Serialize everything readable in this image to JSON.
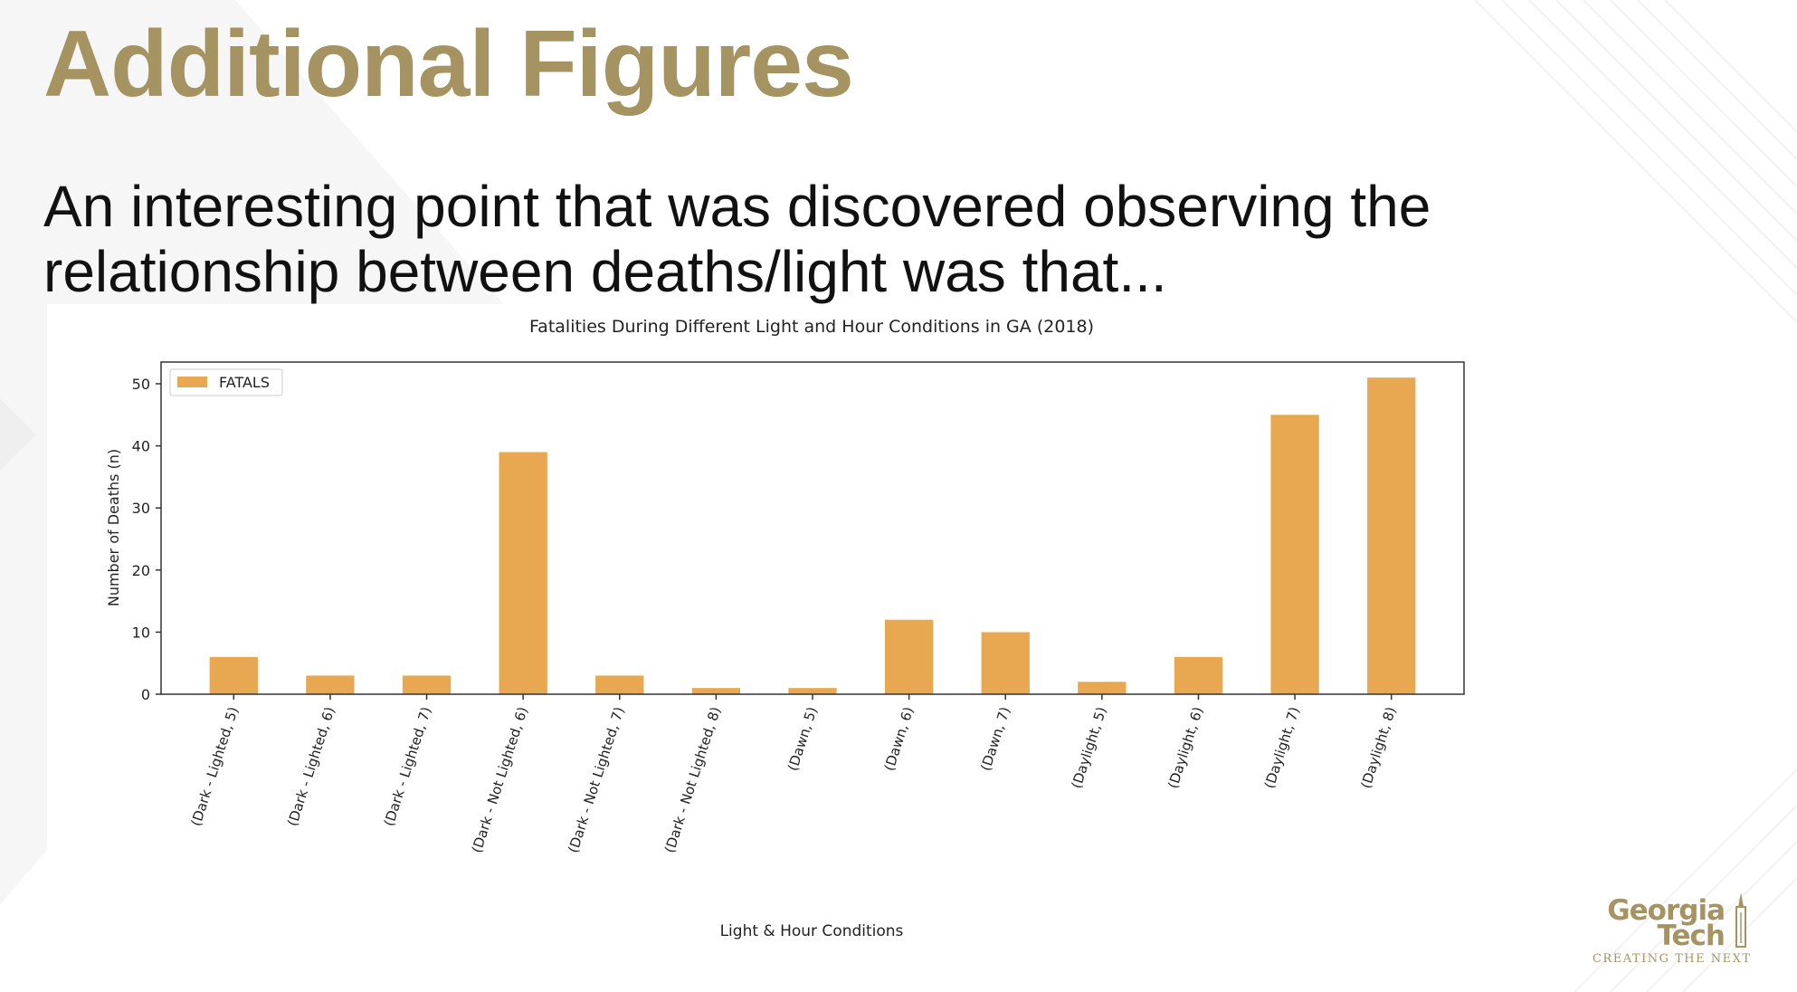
{
  "slide": {
    "title": "Additional Figures",
    "body": "An interesting point that was discovered observing the relationship between deaths/light was that..."
  },
  "logo": {
    "line1": "Georgia",
    "line2": "Tech",
    "tagline": "CREATING THE NEXT"
  },
  "colors": {
    "accent": "#A59462",
    "bar": "#E8A851"
  },
  "chart_data": {
    "type": "bar",
    "title": "Fatalities During Different Light and Hour Conditions in GA (2018)",
    "xlabel": "Light & Hour Conditions",
    "ylabel": "Number of Deaths (n)",
    "ylim": [
      0,
      53.5
    ],
    "yticks": [
      0,
      10,
      20,
      30,
      40,
      50
    ],
    "legend": {
      "position": "top-left",
      "entries": [
        "FATALS"
      ]
    },
    "grid": false,
    "categories": [
      "(Dark - Lighted, 5)",
      "(Dark - Lighted, 6)",
      "(Dark - Lighted, 7)",
      "(Dark - Not Lighted, 6)",
      "(Dark - Not Lighted, 7)",
      "(Dark - Not Lighted, 8)",
      "(Dawn, 5)",
      "(Dawn, 6)",
      "(Dawn, 7)",
      "(Daylight, 5)",
      "(Daylight, 6)",
      "(Daylight, 7)",
      "(Daylight, 8)"
    ],
    "series": [
      {
        "name": "FATALS",
        "values": [
          6,
          3,
          3,
          39,
          3,
          1,
          1,
          12,
          10,
          2,
          6,
          45,
          51
        ]
      }
    ]
  }
}
